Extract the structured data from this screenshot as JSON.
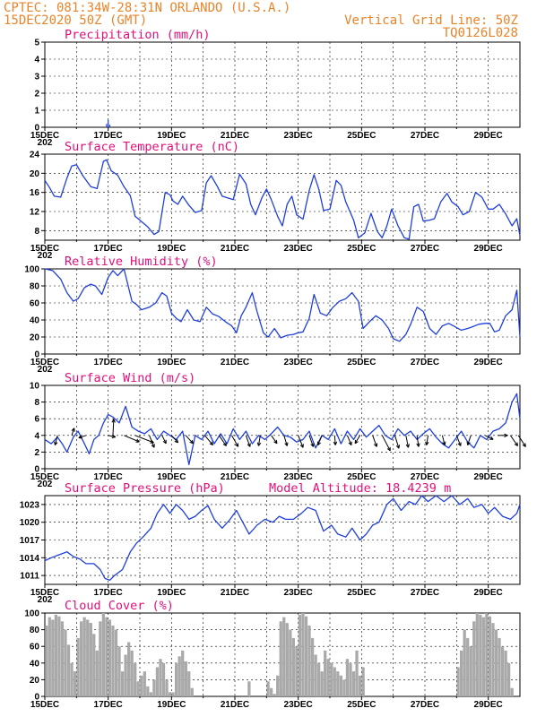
{
  "header": {
    "line1_left": "CPTEC:   081:34W-28:31N  ORLANDO (U.S.A.)",
    "line2_left": "15DEC2020 50Z (GMT)",
    "line1_right": "Vertical Grid Line: 50Z",
    "line2_right": "TQ0126L028"
  },
  "colors": {
    "header": "#e8842a",
    "title": "#e0107a",
    "line": "#1f3fdc",
    "bar": "#a9a9a9"
  },
  "x_axis": {
    "start_day": 15,
    "end_day": 30,
    "tick_labels": [
      "15DEC",
      "17DEC",
      "19DEC",
      "21DEC",
      "23DEC",
      "25DEC",
      "27DEC",
      "29DEC"
    ],
    "tick_days": [
      15,
      17,
      19,
      21,
      23,
      25,
      27,
      29
    ],
    "cutoff_label": "202"
  },
  "chart_data": [
    {
      "type": "bar",
      "title": "Precipitation (mm/h)",
      "ylim": [
        0,
        5
      ],
      "yticks": [
        0,
        1,
        2,
        3,
        4,
        5
      ],
      "x": [
        16.95,
        17.0,
        17.05
      ],
      "values": [
        0.2,
        0.45,
        0.15
      ]
    },
    {
      "type": "line",
      "title": "Surface Temperature (nC)",
      "ylim": [
        6,
        24
      ],
      "yticks": [
        8,
        12,
        16,
        20,
        24
      ],
      "x": [
        15.0,
        15.15,
        15.3,
        15.5,
        15.7,
        15.85,
        16.0,
        16.2,
        16.45,
        16.65,
        16.85,
        16.95,
        17.1,
        17.3,
        17.5,
        17.7,
        17.85,
        18.0,
        18.25,
        18.45,
        18.6,
        18.8,
        18.95,
        19.05,
        19.2,
        19.35,
        19.55,
        19.75,
        19.95,
        20.1,
        20.25,
        20.45,
        20.6,
        20.8,
        20.95,
        21.15,
        21.35,
        21.5,
        21.65,
        21.85,
        22.0,
        22.15,
        22.35,
        22.5,
        22.65,
        22.8,
        22.95,
        23.15,
        23.35,
        23.5,
        23.65,
        23.8,
        24.0,
        24.2,
        24.35,
        24.5,
        24.75,
        24.9,
        25.1,
        25.3,
        25.5,
        25.65,
        25.8,
        25.95,
        26.15,
        26.35,
        26.5,
        26.65,
        26.8,
        26.95,
        27.15,
        27.3,
        27.5,
        27.7,
        27.85,
        28.05,
        28.2,
        28.4,
        28.6,
        28.8,
        29.0,
        29.15,
        29.35,
        29.55,
        29.75,
        29.9,
        30.0
      ],
      "values": [
        18.5,
        17.0,
        15.2,
        15.0,
        19.0,
        21.5,
        21.8,
        19.5,
        17.2,
        16.8,
        22.5,
        22.8,
        20.5,
        19.6,
        17.2,
        15.3,
        11.0,
        10.2,
        8.8,
        7.2,
        7.8,
        16.0,
        15.5,
        14.2,
        13.5,
        15.2,
        13.3,
        11.8,
        12.2,
        18.0,
        19.5,
        17.2,
        15.2,
        14.8,
        14.5,
        19.8,
        17.8,
        13.5,
        11.3,
        14.8,
        16.7,
        14.5,
        11.0,
        9.0,
        13.5,
        15.2,
        11.3,
        10.4,
        16.4,
        19.7,
        16.7,
        12.2,
        12.5,
        18.5,
        17.5,
        14.0,
        10.2,
        6.5,
        7.5,
        11.6,
        7.8,
        6.5,
        9.0,
        12.5,
        9.0,
        6.5,
        6.2,
        13.0,
        13.5,
        10.0,
        10.2,
        10.5,
        14.0,
        15.8,
        14.0,
        13.0,
        11.3,
        12.0,
        16.0,
        15.0,
        12.5,
        12.5,
        13.5,
        11.5,
        9.0,
        10.5,
        7.0
      ]
    },
    {
      "type": "line",
      "title": "Relative Humidity (%)",
      "ylim": [
        0,
        100
      ],
      "yticks": [
        0,
        20,
        40,
        60,
        80,
        100
      ],
      "x": [
        15.0,
        15.25,
        15.5,
        15.7,
        15.9,
        16.05,
        16.25,
        16.45,
        16.6,
        16.8,
        17.0,
        17.15,
        17.3,
        17.5,
        17.75,
        17.9,
        18.05,
        18.3,
        18.5,
        18.7,
        18.85,
        19.0,
        19.15,
        19.3,
        19.5,
        19.7,
        19.9,
        20.1,
        20.3,
        20.5,
        20.7,
        20.9,
        21.05,
        21.2,
        21.35,
        21.55,
        21.7,
        21.9,
        22.05,
        22.25,
        22.45,
        22.65,
        22.85,
        23.0,
        23.15,
        23.35,
        23.5,
        23.7,
        23.9,
        24.1,
        24.3,
        24.5,
        24.7,
        24.9,
        25.05,
        25.25,
        25.45,
        25.65,
        25.85,
        26.0,
        26.2,
        26.4,
        26.55,
        26.75,
        26.95,
        27.15,
        27.35,
        27.55,
        27.75,
        27.95,
        28.15,
        28.35,
        28.5,
        28.7,
        28.9,
        29.05,
        29.2,
        29.35,
        29.55,
        29.75,
        29.9,
        30.0
      ],
      "values": [
        100,
        98,
        88,
        72,
        62,
        65,
        78,
        82,
        80,
        70,
        90,
        98,
        92,
        100,
        62,
        58,
        52,
        55,
        60,
        72,
        68,
        48,
        42,
        38,
        52,
        40,
        38,
        55,
        47,
        44,
        38,
        33,
        25,
        45,
        55,
        72,
        50,
        25,
        20,
        30,
        19,
        22,
        23,
        25,
        26,
        42,
        70,
        48,
        45,
        55,
        62,
        65,
        72,
        62,
        30,
        38,
        45,
        40,
        30,
        18,
        15,
        23,
        35,
        55,
        50,
        30,
        23,
        33,
        36,
        32,
        28,
        30,
        32,
        35,
        36,
        36,
        26,
        28,
        45,
        52,
        75,
        20
      ]
    },
    {
      "type": "line",
      "title": "Surface Wind (m/s)",
      "ylim": [
        0,
        10
      ],
      "yticks": [
        0,
        2,
        4,
        6,
        8,
        10
      ],
      "x": [
        15.0,
        15.2,
        15.4,
        15.55,
        15.7,
        15.9,
        16.05,
        16.25,
        16.4,
        16.55,
        16.7,
        16.85,
        17.0,
        17.15,
        17.35,
        17.55,
        17.75,
        17.95,
        18.15,
        18.35,
        18.55,
        18.75,
        18.95,
        19.15,
        19.35,
        19.55,
        19.75,
        19.95,
        20.15,
        20.35,
        20.55,
        20.75,
        20.95,
        21.15,
        21.35,
        21.55,
        21.75,
        21.95,
        22.15,
        22.35,
        22.55,
        22.75,
        22.95,
        23.15,
        23.35,
        23.55,
        23.75,
        23.95,
        24.15,
        24.35,
        24.55,
        24.75,
        24.95,
        25.15,
        25.35,
        25.55,
        25.75,
        25.95,
        26.15,
        26.35,
        26.55,
        26.75,
        26.95,
        27.15,
        27.35,
        27.55,
        27.75,
        27.95,
        28.15,
        28.35,
        28.55,
        28.75,
        28.95,
        29.15,
        29.35,
        29.55,
        29.75,
        29.9,
        30.0
      ],
      "values": [
        3.5,
        3.0,
        3.8,
        3.0,
        2.0,
        3.8,
        4.5,
        3.0,
        1.8,
        3.5,
        4.0,
        5.5,
        6.5,
        6.2,
        5.5,
        7.5,
        5.0,
        4.5,
        4.2,
        4.8,
        3.5,
        4.5,
        4.0,
        3.5,
        4.5,
        0.5,
        4.0,
        3.5,
        4.5,
        3.0,
        4.2,
        3.0,
        4.8,
        3.5,
        4.5,
        3.0,
        4.0,
        3.5,
        4.2,
        5.0,
        4.0,
        3.8,
        3.2,
        3.5,
        4.5,
        2.5,
        4.0,
        3.5,
        4.8,
        3.0,
        4.5,
        3.5,
        4.8,
        3.8,
        4.5,
        5.2,
        4.0,
        3.5,
        4.8,
        4.0,
        4.5,
        3.5,
        4.2,
        4.8,
        3.8,
        3.0,
        2.5,
        3.5,
        4.5,
        3.2,
        2.5,
        4.0,
        3.5,
        4.5,
        4.8,
        5.5,
        8.0,
        9.0,
        6.0
      ],
      "vectors": [
        {
          "x": 15.4,
          "u": -0.3,
          "v": -1.2
        },
        {
          "x": 15.85,
          "u": 0.3,
          "v": 0.9
        },
        {
          "x": 16.3,
          "u": -0.9,
          "v": -0.3
        },
        {
          "x": 17.0,
          "u": 0.9,
          "v": -0.2
        },
        {
          "x": 17.15,
          "u": 0.1,
          "v": 2.0
        },
        {
          "x": 17.5,
          "u": 1.9,
          "v": -0.8
        },
        {
          "x": 17.85,
          "u": 2.3,
          "v": -0.9
        },
        {
          "x": 18.3,
          "u": 0.6,
          "v": -1.5
        },
        {
          "x": 18.7,
          "u": 0.5,
          "v": -1.0
        },
        {
          "x": 19.0,
          "u": 0.8,
          "v": -0.9
        },
        {
          "x": 19.45,
          "u": 0.9,
          "v": -1.0
        },
        {
          "x": 20.05,
          "u": 1.0,
          "v": -1.2
        },
        {
          "x": 20.5,
          "u": 0.9,
          "v": -1.3
        },
        {
          "x": 20.9,
          "u": 0.8,
          "v": -1.4
        },
        {
          "x": 21.35,
          "u": 0.5,
          "v": -1.4
        },
        {
          "x": 21.8,
          "u": -0.2,
          "v": -1.3
        },
        {
          "x": 22.15,
          "u": 0.7,
          "v": -1.0
        },
        {
          "x": 22.55,
          "u": 0.4,
          "v": -1.3
        },
        {
          "x": 23.0,
          "u": 0.6,
          "v": -1.5
        },
        {
          "x": 23.35,
          "u": 0.5,
          "v": -1.4
        },
        {
          "x": 23.75,
          "u": -0.5,
          "v": -1.2
        },
        {
          "x": 24.15,
          "u": 0.1,
          "v": -1.2
        },
        {
          "x": 24.55,
          "u": 0.5,
          "v": -1.2
        },
        {
          "x": 24.95,
          "u": -0.6,
          "v": -1.0
        },
        {
          "x": 25.35,
          "u": 0.5,
          "v": -1.4
        },
        {
          "x": 25.65,
          "u": 1.0,
          "v": -1.9
        },
        {
          "x": 26.05,
          "u": 0.5,
          "v": -1.6
        },
        {
          "x": 26.4,
          "u": 0.3,
          "v": -1.5
        },
        {
          "x": 26.75,
          "u": 0.2,
          "v": -1.4
        },
        {
          "x": 27.1,
          "u": -0.2,
          "v": -1.2
        },
        {
          "x": 27.55,
          "u": 0.3,
          "v": -1.2
        },
        {
          "x": 28.0,
          "u": 0.5,
          "v": -1.3
        },
        {
          "x": 28.45,
          "u": -0.4,
          "v": -1.2
        },
        {
          "x": 28.9,
          "u": 1.0,
          "v": -0.5
        },
        {
          "x": 29.3,
          "u": 1.2,
          "v": 0.0
        },
        {
          "x": 29.7,
          "u": 0.9,
          "v": -1.3
        },
        {
          "x": 29.95,
          "u": 0.9,
          "v": -1.4
        }
      ]
    },
    {
      "type": "line",
      "title": "Surface Pressure (hPa)",
      "annotation": "Model Altitude: 18.4239 m",
      "ylim": [
        1009.5,
        1024.5
      ],
      "yticks": [
        1011,
        1014,
        1017,
        1020,
        1023
      ],
      "ytick_labels": [
        "1011",
        "1014",
        "1017",
        "1020",
        "1023"
      ],
      "x": [
        15.0,
        15.2,
        15.45,
        15.7,
        15.9,
        16.1,
        16.3,
        16.55,
        16.75,
        16.9,
        17.05,
        17.2,
        17.45,
        17.7,
        17.9,
        18.1,
        18.35,
        18.55,
        18.75,
        18.95,
        19.15,
        19.35,
        19.55,
        19.75,
        19.95,
        20.15,
        20.35,
        20.6,
        20.85,
        21.05,
        21.25,
        21.45,
        21.7,
        21.95,
        22.2,
        22.4,
        22.6,
        22.85,
        23.1,
        23.3,
        23.55,
        23.8,
        24.05,
        24.25,
        24.5,
        24.7,
        24.95,
        25.15,
        25.35,
        25.55,
        25.8,
        26.0,
        26.25,
        26.5,
        26.7,
        26.9,
        27.1,
        27.35,
        27.6,
        27.85,
        28.1,
        28.35,
        28.55,
        28.8,
        29.0,
        29.2,
        29.45,
        29.7,
        29.9,
        30.0
      ],
      "values": [
        1013.5,
        1014.0,
        1014.5,
        1015.0,
        1014.2,
        1013.8,
        1013.0,
        1013.0,
        1012.0,
        1010.5,
        1010.2,
        1011.0,
        1012.0,
        1015.0,
        1016.5,
        1017.5,
        1019.0,
        1021.5,
        1023.0,
        1021.5,
        1023.0,
        1022.0,
        1020.5,
        1021.0,
        1022.0,
        1022.8,
        1020.5,
        1019.0,
        1020.5,
        1022.0,
        1020.0,
        1018.0,
        1019.5,
        1020.5,
        1020.0,
        1021.0,
        1020.5,
        1020.5,
        1021.5,
        1022.5,
        1022.0,
        1018.5,
        1019.5,
        1018.0,
        1017.5,
        1019.0,
        1017.0,
        1018.0,
        1019.5,
        1020.0,
        1023.0,
        1024.0,
        1022.0,
        1023.5,
        1023.0,
        1024.5,
        1023.5,
        1024.8,
        1023.5,
        1024.5,
        1023.0,
        1024.0,
        1022.5,
        1023.0,
        1021.5,
        1022.5,
        1021.0,
        1020.5,
        1021.5,
        1023.0
      ]
    },
    {
      "type": "bar",
      "title": "Cloud Cover (%)",
      "ylim": [
        0,
        100
      ],
      "yticks": [
        0,
        20,
        40,
        60,
        80,
        100
      ],
      "x": [
        15.05,
        15.15,
        15.25,
        15.35,
        15.45,
        15.55,
        15.65,
        15.75,
        15.85,
        15.95,
        16.05,
        16.15,
        16.25,
        16.35,
        16.45,
        16.55,
        16.65,
        16.75,
        16.85,
        16.95,
        17.05,
        17.15,
        17.25,
        17.35,
        17.45,
        17.55,
        17.65,
        17.75,
        17.85,
        17.95,
        18.05,
        18.15,
        18.25,
        18.35,
        18.45,
        18.55,
        18.65,
        18.75,
        18.85,
        18.95,
        19.05,
        19.15,
        19.25,
        19.35,
        19.45,
        19.55,
        19.65,
        19.75,
        19.85,
        19.95,
        22.05,
        22.15,
        22.25,
        22.35,
        22.45,
        22.55,
        22.65,
        22.75,
        22.85,
        22.95,
        23.05,
        23.15,
        23.25,
        23.35,
        23.45,
        23.55,
        23.65,
        23.75,
        23.85,
        23.95,
        24.05,
        24.15,
        24.25,
        24.35,
        24.45,
        24.55,
        24.65,
        24.75,
        24.85,
        24.95,
        25.05,
        25.15,
        25.25,
        25.35,
        28.05,
        28.15,
        28.25,
        28.35,
        28.45,
        28.55,
        28.65,
        28.75,
        28.85,
        28.95,
        29.05,
        29.15,
        29.25,
        29.35,
        29.45,
        29.55,
        29.65,
        29.75,
        29.85
      ],
      "values": [
        85,
        95,
        92,
        98,
        96,
        90,
        80,
        62,
        40,
        30,
        70,
        90,
        95,
        92,
        88,
        75,
        55,
        90,
        100,
        95,
        92,
        85,
        80,
        60,
        30,
        50,
        65,
        55,
        40,
        18,
        25,
        30,
        12,
        5,
        20,
        35,
        45,
        40,
        20,
        5,
        5,
        40,
        48,
        55,
        42,
        30,
        10,
        0,
        0,
        0,
        18,
        10,
        3,
        25,
        90,
        95,
        88,
        80,
        70,
        60,
        98,
        100,
        96,
        85,
        70,
        50,
        40,
        30,
        55,
        45,
        40,
        35,
        30,
        25,
        20,
        45,
        40,
        30,
        55,
        25,
        15,
        0,
        0,
        0,
        35,
        55,
        80,
        70,
        60,
        90,
        100,
        98,
        95,
        100,
        96,
        88,
        80,
        70,
        60,
        55,
        40,
        10,
        0
      ],
      "partial_bars": [
        {
          "x": 16.45,
          "value": 88
        },
        {
          "x": 19.45,
          "value": 42
        },
        {
          "x": 21.45,
          "value": 18
        },
        {
          "x": 22.45,
          "value": 8
        },
        {
          "x": 25.05,
          "value": 35
        }
      ]
    }
  ]
}
